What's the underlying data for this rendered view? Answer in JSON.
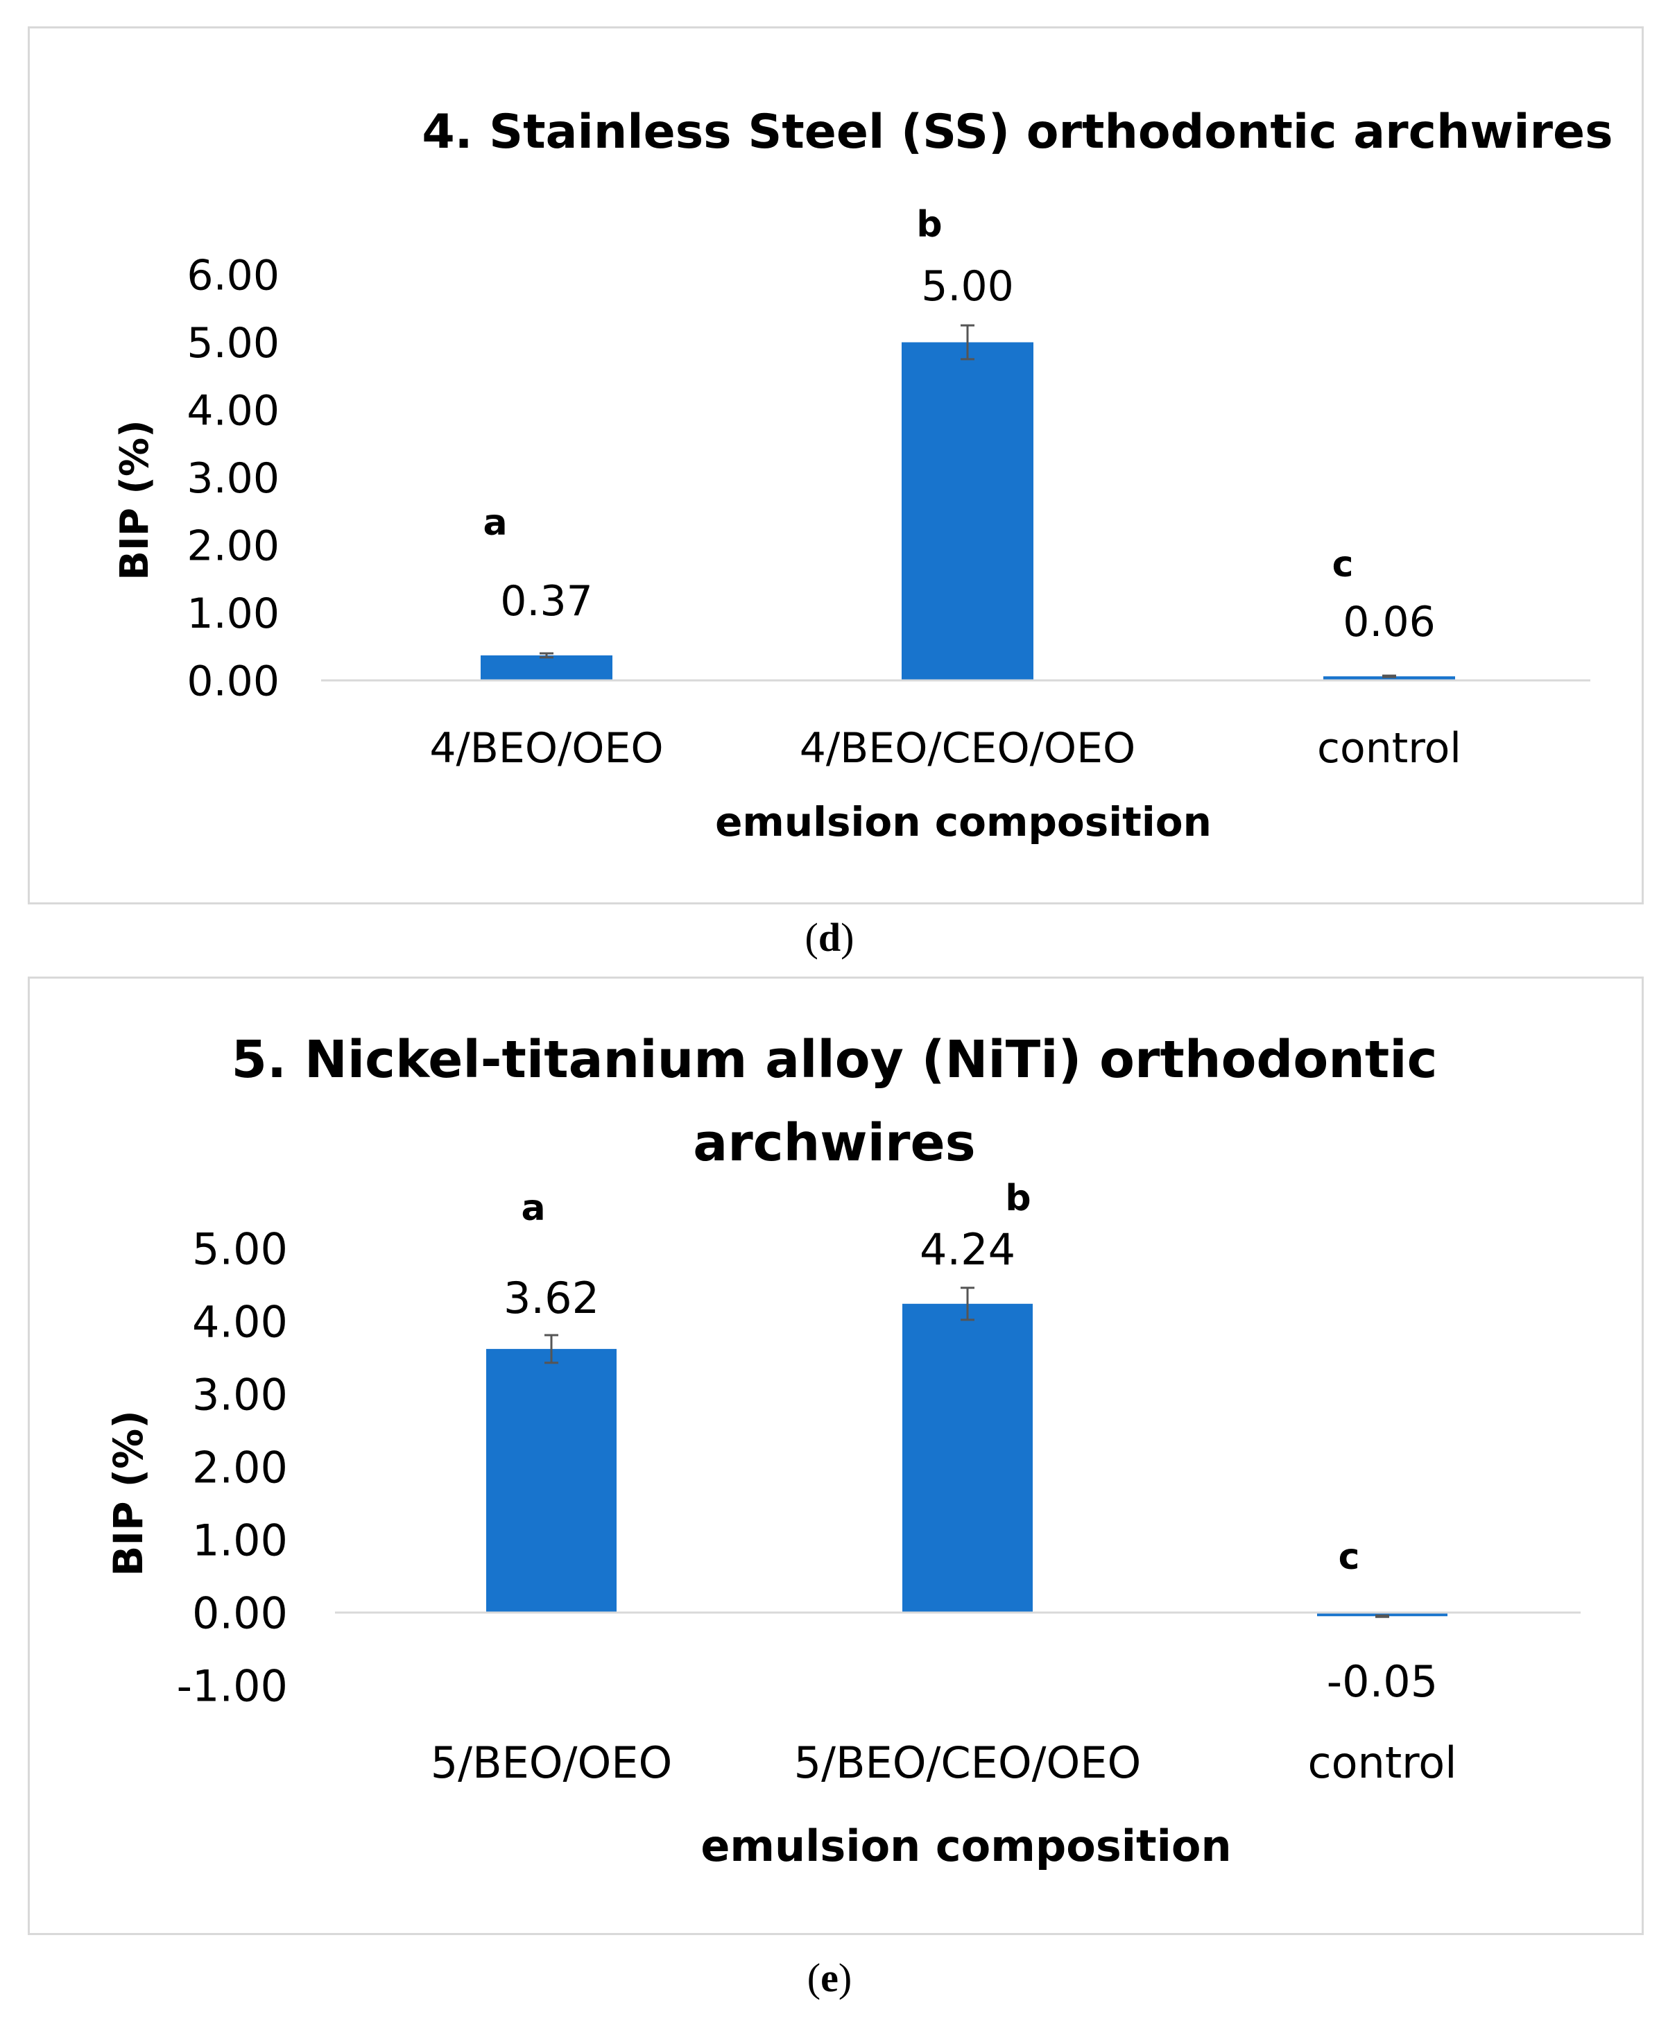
{
  "chart_data": [
    {
      "type": "bar",
      "panel_label": "d",
      "title_lines": [
        "4.  Stainless Steel (SS) orthodontic archwires"
      ],
      "xlabel": "emulsion composition",
      "ylabel": "BIP (%)",
      "categories": [
        "4/BEO/OEO",
        "4/BEO/CEO/OEO",
        "control"
      ],
      "values": [
        0.37,
        5.0,
        0.06
      ],
      "value_labels": [
        "0.37",
        "5.00",
        "0.06"
      ],
      "errors": [
        0.03,
        0.25,
        0.01
      ],
      "significance": [
        "a",
        "b",
        "c"
      ],
      "ylim": [
        0,
        6
      ],
      "yticks": [
        0,
        1,
        2,
        3,
        4,
        5,
        6
      ],
      "ytick_labels": [
        "0.00",
        "1.00",
        "2.00",
        "3.00",
        "4.00",
        "5.00",
        "6.00"
      ],
      "bar_color": "#1874cd",
      "grid": false
    },
    {
      "type": "bar",
      "panel_label": "e",
      "title_lines": [
        "5. Nickel-titanium alloy (NiTi) orthodontic",
        "archwires"
      ],
      "xlabel": "emulsion composition",
      "ylabel": "BIP (%)",
      "categories": [
        "5/BEO/OEO",
        "5/BEO/CEO/OEO",
        "control"
      ],
      "values": [
        3.62,
        4.24,
        -0.05
      ],
      "value_labels": [
        "3.62",
        "4.24",
        "-0.05"
      ],
      "errors": [
        0.19,
        0.22,
        0.01
      ],
      "significance": [
        "a",
        "b",
        "c"
      ],
      "ylim": [
        -1,
        5
      ],
      "yticks": [
        -1,
        0,
        1,
        2,
        3,
        4,
        5
      ],
      "ytick_labels": [
        "-1.00",
        "0.00",
        "1.00",
        "2.00",
        "3.00",
        "4.00",
        "5.00"
      ],
      "bar_color": "#1874cd",
      "grid": false
    }
  ]
}
